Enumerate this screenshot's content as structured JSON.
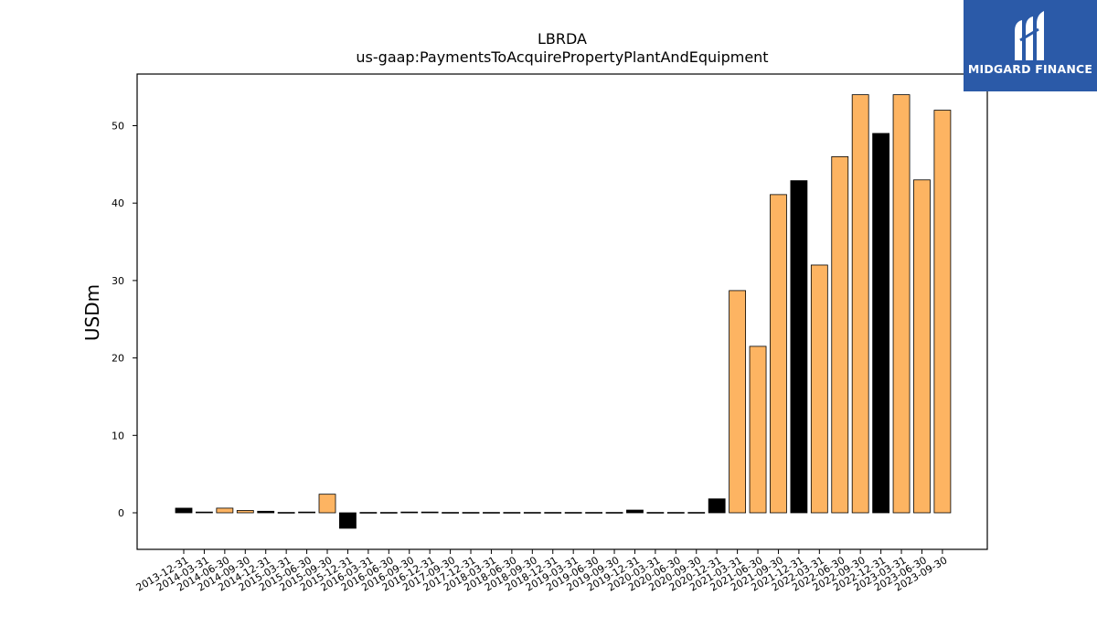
{
  "logo": {
    "text": "MIDGARD FINANCE",
    "background": "#2b5aa8"
  },
  "colors": {
    "orange": "#fdb462",
    "black": "#000000",
    "edge": "#000000"
  },
  "chart_data": {
    "type": "bar",
    "title": "LBRDA",
    "subtitle": "us-gaap:PaymentsToAcquirePropertyPlantAndEquipment",
    "xlabel": "",
    "ylabel": "USDm",
    "ylim": [
      -5,
      57
    ],
    "yticks": [
      0,
      10,
      20,
      30,
      40,
      50
    ],
    "grid": false,
    "categories": [
      "2013-12-31",
      "2014-03-31",
      "2014-06-30",
      "2014-09-30",
      "2014-12-31",
      "2015-03-31",
      "2015-06-30",
      "2015-09-30",
      "2015-12-31",
      "2016-03-31",
      "2016-06-30",
      "2016-09-30",
      "2016-12-31",
      "2017-09-30",
      "2017-12-31",
      "2018-03-31",
      "2018-06-30",
      "2018-09-30",
      "2018-12-31",
      "2019-03-31",
      "2019-06-30",
      "2019-09-30",
      "2019-12-31",
      "2020-03-31",
      "2020-06-30",
      "2020-09-30",
      "2020-12-31",
      "2021-03-31",
      "2021-06-30",
      "2021-09-30",
      "2021-12-31",
      "2022-03-31",
      "2022-06-30",
      "2022-09-30",
      "2022-12-31",
      "2023-03-31",
      "2023-06-30",
      "2023-09-30"
    ],
    "values": [
      0.6,
      0.1,
      0.6,
      0.3,
      0.2,
      0.05,
      0.1,
      2.4,
      -2.0,
      0.05,
      0.05,
      0.1,
      0.1,
      0.05,
      0.05,
      0.05,
      0.05,
      0.05,
      0.05,
      0.05,
      0.05,
      0.05,
      0.35,
      0.05,
      0.05,
      0.05,
      1.8,
      28.7,
      21.5,
      41.1,
      42.9,
      32.0,
      46.0,
      54.0,
      49.0,
      54.0,
      43.0,
      52.0
    ],
    "bar_colors": [
      "black",
      "black",
      "orange",
      "orange",
      "black",
      "black",
      "black",
      "orange",
      "black",
      "black",
      "black",
      "black",
      "black",
      "black",
      "black",
      "black",
      "black",
      "black",
      "black",
      "black",
      "black",
      "black",
      "black",
      "black",
      "black",
      "black",
      "black",
      "orange",
      "orange",
      "orange",
      "black",
      "orange",
      "orange",
      "orange",
      "black",
      "orange",
      "orange",
      "orange"
    ]
  }
}
